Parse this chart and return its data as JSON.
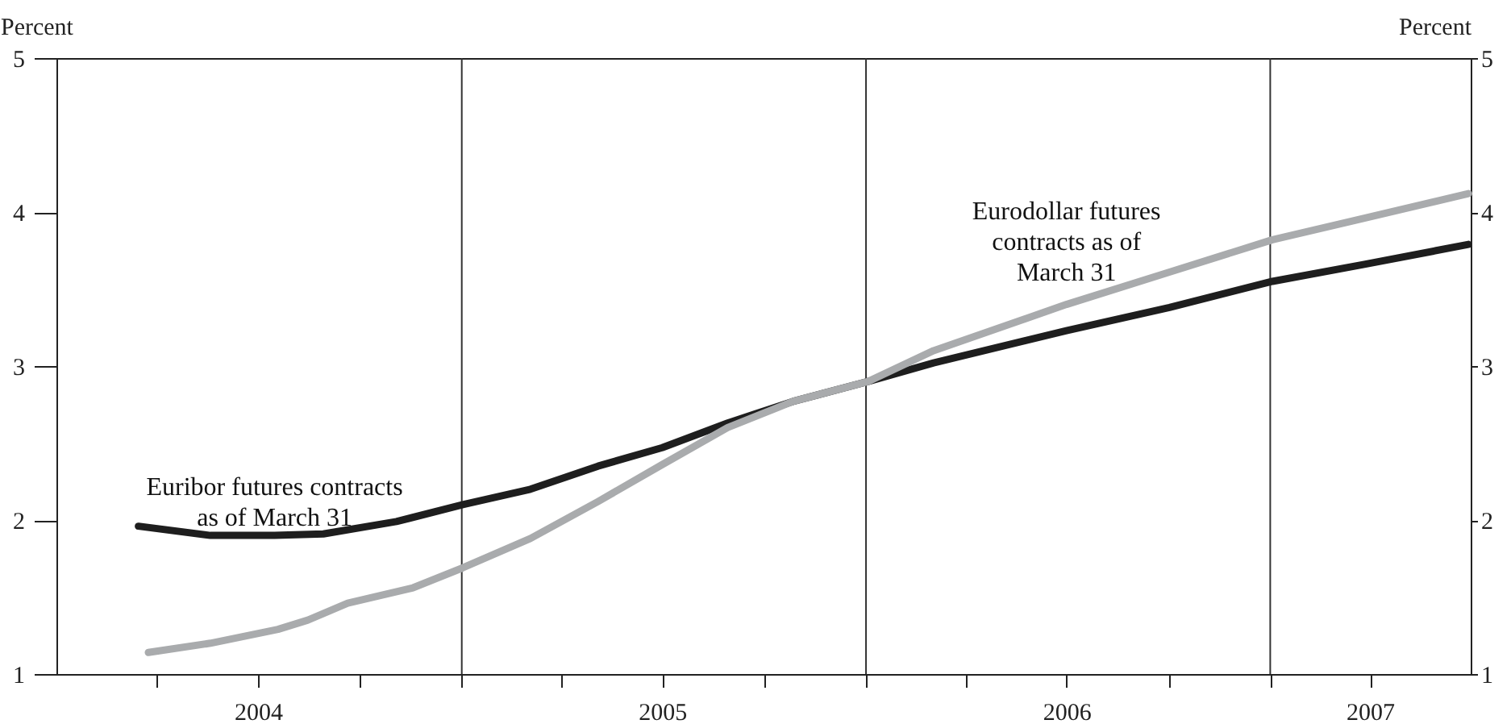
{
  "chart_data": {
    "type": "line",
    "ylabel": "Percent",
    "y2label": "Percent",
    "xlim": [
      "2004-01-01",
      "2007-07-01"
    ],
    "xticks": [
      {
        "value": "2004-04-01",
        "label": null
      },
      {
        "value": "2004-07-01",
        "label": "2004"
      },
      {
        "value": "2004-10-01",
        "label": null
      },
      {
        "value": "2005-01-01",
        "label": null
      },
      {
        "value": "2005-04-01",
        "label": null
      },
      {
        "value": "2005-07-01",
        "label": "2005"
      },
      {
        "value": "2005-10-01",
        "label": null
      },
      {
        "value": "2006-01-01",
        "label": null
      },
      {
        "value": "2006-04-01",
        "label": null
      },
      {
        "value": "2006-07-01",
        "label": "2006"
      },
      {
        "value": "2006-10-01",
        "label": null
      },
      {
        "value": "2007-01-01",
        "label": null
      },
      {
        "value": "2007-04-01",
        "label": "2007"
      }
    ],
    "ylim": [
      1,
      5
    ],
    "yticks": [
      1,
      2,
      3,
      4,
      5
    ],
    "y2lim": [
      1,
      5
    ],
    "y2ticks": [
      1,
      2,
      3,
      4,
      5
    ],
    "grid": false,
    "marker": "none",
    "line_style": "solid",
    "ref_lines": [
      {
        "axis": "x",
        "value": "2005-01-01",
        "label": null,
        "color": "#333333"
      },
      {
        "axis": "x",
        "value": "2006-01-01",
        "label": null,
        "color": "#333333"
      },
      {
        "axis": "x",
        "value": "2007-01-01",
        "label": null,
        "color": "#333333"
      }
    ],
    "series": [
      {
        "name": "Euribor futures contracts\nas of March 31",
        "color": "#1e1e1e",
        "x": [
          "2004-03-15",
          "2004-05-19",
          "2004-07-16",
          "2004-08-29",
          "2004-11-03",
          "2005-01-02",
          "2005-03-04",
          "2005-05-04",
          "2005-07-01",
          "2005-08-29",
          "2005-10-27",
          "2006-01-03",
          "2006-03-03",
          "2006-07-01",
          "2006-10-02",
          "2007-01-03",
          "2007-03-27",
          "2007-06-29"
        ],
        "values": [
          1.96,
          1.9,
          1.9,
          1.91,
          1.99,
          2.1,
          2.2,
          2.35,
          2.47,
          2.63,
          2.77,
          2.9,
          3.02,
          3.23,
          3.38,
          3.55,
          3.66,
          3.79
        ]
      },
      {
        "name": "Eurodollar futures\ncontracts as of\nMarch 31",
        "color": "#a9abad",
        "x": [
          "2004-03-24",
          "2004-05-19",
          "2004-07-19",
          "2004-08-15",
          "2004-09-20",
          "2004-11-18",
          "2005-01-02",
          "2005-03-04",
          "2005-05-04",
          "2005-07-01",
          "2005-08-29",
          "2005-10-27",
          "2006-01-03",
          "2006-03-03",
          "2006-07-01",
          "2006-10-02",
          "2007-01-03",
          "2007-03-27",
          "2007-06-29"
        ],
        "values": [
          1.14,
          1.2,
          1.29,
          1.35,
          1.46,
          1.56,
          1.69,
          1.88,
          2.12,
          2.36,
          2.6,
          2.77,
          2.9,
          3.1,
          3.4,
          3.61,
          3.82,
          3.96,
          4.12
        ]
      }
    ]
  }
}
